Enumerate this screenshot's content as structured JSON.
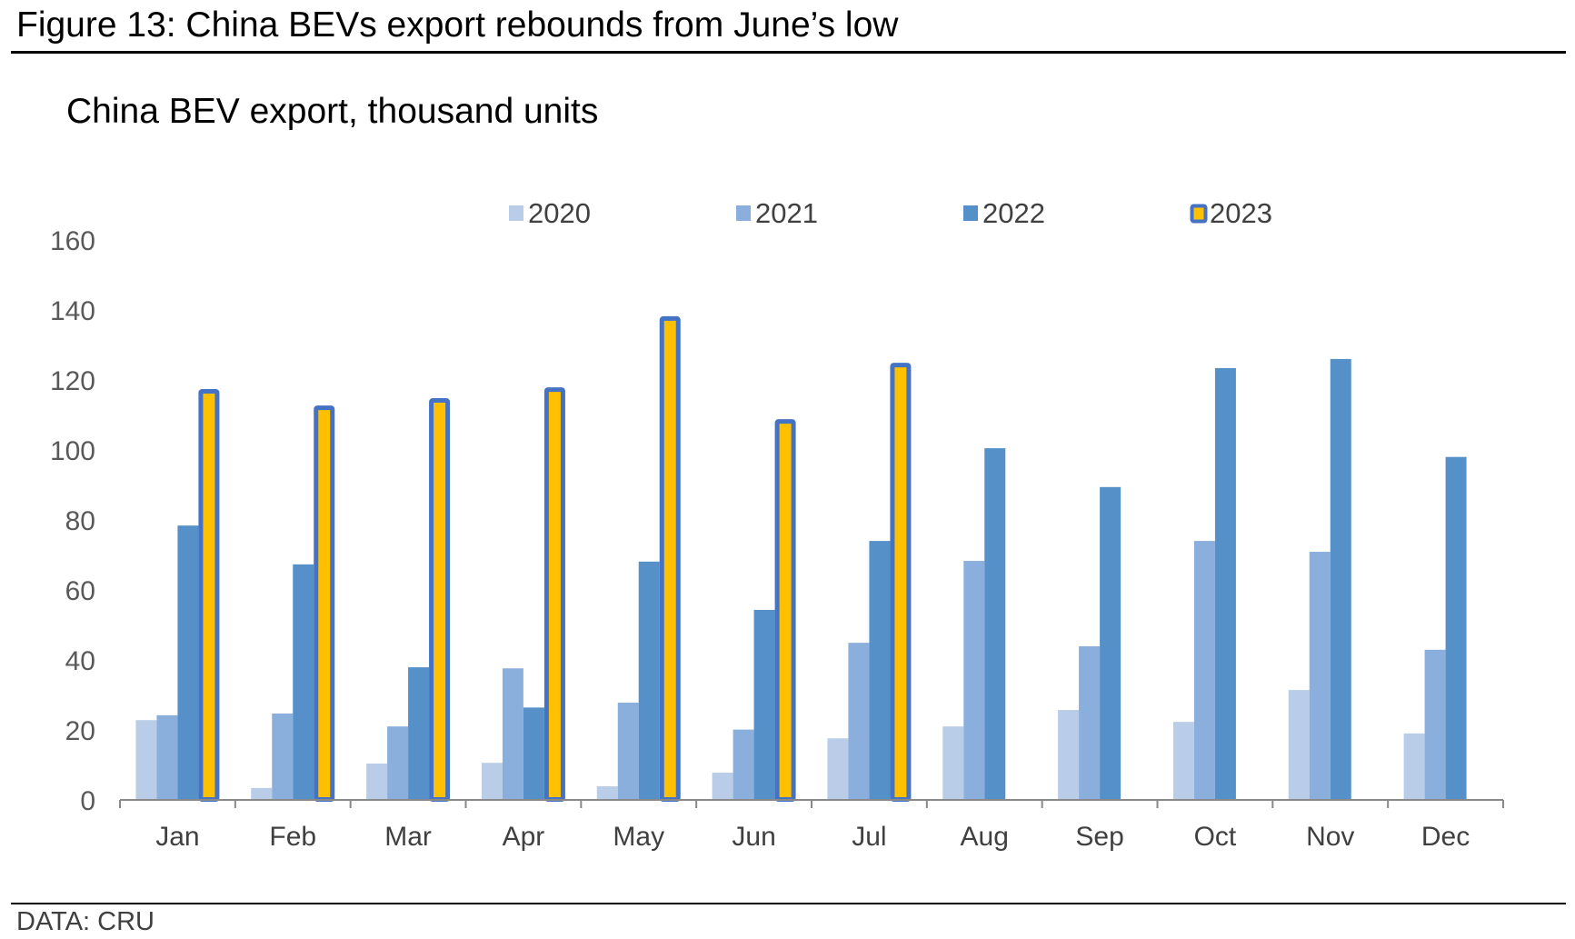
{
  "figure": {
    "title": "Figure 13: China BEVs export rebounds from June’s low",
    "source": "DATA: CRU"
  },
  "chart_data": {
    "type": "bar",
    "title": "China BEV export, thousand units",
    "xlabel": "",
    "ylabel": "",
    "ylim": [
      0,
      160
    ],
    "yticks": [
      0,
      20,
      40,
      60,
      80,
      100,
      120,
      140,
      160
    ],
    "grid": false,
    "legend_position": "top-center",
    "categories": [
      "Jan",
      "Feb",
      "Mar",
      "Apr",
      "May",
      "Jun",
      "Jul",
      "Aug",
      "Sep",
      "Oct",
      "Nov",
      "Dec"
    ],
    "series": [
      {
        "name": "2020",
        "color": "#B9CDE8",
        "border": null,
        "values": [
          22.8,
          3.4,
          10.4,
          10.6,
          3.9,
          7.8,
          17.6,
          21.0,
          25.7,
          22.3,
          31.4,
          19.0
        ]
      },
      {
        "name": "2021",
        "color": "#8AAFDD",
        "border": null,
        "values": [
          24.2,
          24.7,
          21.0,
          37.6,
          27.8,
          20.1,
          44.9,
          68.3,
          43.9,
          74.0,
          70.9,
          42.9
        ]
      },
      {
        "name": "2022",
        "color": "#5591C8",
        "border": null,
        "values": [
          78.4,
          67.3,
          37.9,
          26.4,
          68.1,
          54.3,
          74.0,
          100.5,
          89.4,
          123.4,
          126.0,
          98.0
        ]
      },
      {
        "name": "2023",
        "color": "#FFC000",
        "border": "#4472C4",
        "values": [
          117.4,
          112.7,
          114.8,
          117.9,
          138.2,
          108.8,
          124.9,
          null,
          null,
          null,
          null,
          null
        ]
      }
    ]
  }
}
